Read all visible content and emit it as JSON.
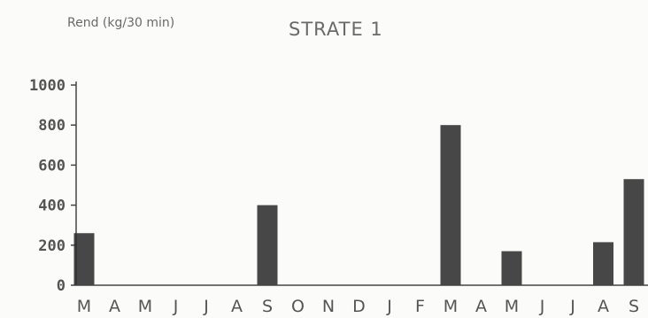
{
  "chart_data": {
    "type": "bar",
    "title": "STRATE 1",
    "ylabel": "Rend (kg/30 min)",
    "xlabel": "",
    "ylim": [
      0,
      1000
    ],
    "yticks": [
      0,
      200,
      400,
      600,
      800,
      1000
    ],
    "ytick_labels": [
      "0",
      "200",
      "400",
      "600",
      "800",
      "1000"
    ],
    "categories": [
      "M",
      "A",
      "M",
      "J",
      "J",
      "A",
      "S",
      "O",
      "N",
      "D",
      "J",
      "F",
      "M",
      "A",
      "M",
      "J",
      "J",
      "A",
      "S"
    ],
    "values": [
      260,
      0,
      0,
      0,
      0,
      0,
      400,
      0,
      0,
      0,
      0,
      0,
      800,
      0,
      170,
      0,
      0,
      215,
      530
    ],
    "grid": false,
    "colors": {
      "bar": "#2e2e2e",
      "axis": "#444444"
    }
  }
}
